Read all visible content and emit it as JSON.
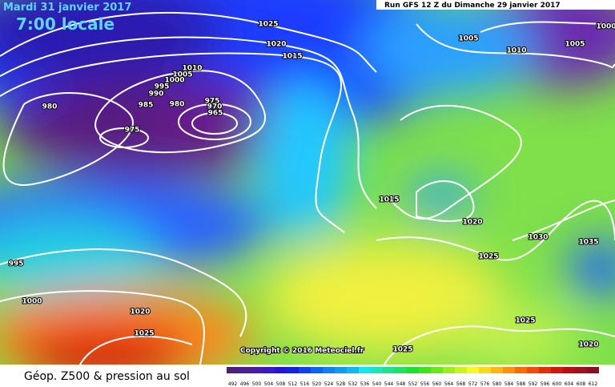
{
  "header": {
    "date": "Mardi 31 janvier 2017",
    "time": "7:00 locale",
    "run": "Run GFS 12 Z du Dimanche 29 janvier 2017"
  },
  "isobar_labels": [
    "1025",
    "1020",
    "1015",
    "1005",
    "1010",
    "1005",
    "1000",
    "1010",
    "1005",
    "1000",
    "995",
    "990",
    "985",
    "980",
    "975",
    "970",
    "965",
    "980",
    "975",
    "1015",
    "1020",
    "1030",
    "1035",
    "1025",
    "995",
    "1000",
    "1020",
    "1025",
    "1025",
    "1025",
    "1020"
  ],
  "copyright": "Copyright © 2016 Meteociel.fr",
  "legend": {
    "title": "Géop. Z500 & pression au sol",
    "scale": [
      492,
      496,
      500,
      504,
      508,
      512,
      516,
      520,
      524,
      528,
      532,
      536,
      540,
      544,
      548,
      552,
      556,
      560,
      564,
      568,
      572,
      576,
      580,
      584,
      588,
      592,
      596,
      600,
      604,
      608,
      612
    ]
  }
}
